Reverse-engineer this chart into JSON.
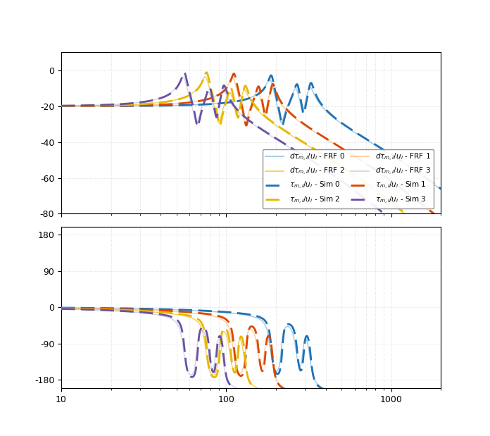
{
  "colors": {
    "frf0": "#6baed6",
    "sim0": "#2171b5",
    "frf1": "#fdae6b",
    "sim1": "#d94801",
    "frf2": "#e6b800",
    "sim2": "#e6b800",
    "frf3": "#bcbddc",
    "sim3": "#6a51a3"
  },
  "freq_min": 10,
  "freq_max": 2000,
  "mag_ylim": [
    -80,
    10
  ],
  "phase_ylim": [
    -200,
    200
  ],
  "mag_yticks": [
    -80,
    -60,
    -40,
    -20,
    0
  ],
  "phase_yticks": [
    -180,
    -90,
    0,
    90,
    180
  ],
  "background": "#ffffff",
  "grid_color": "#cccccc"
}
